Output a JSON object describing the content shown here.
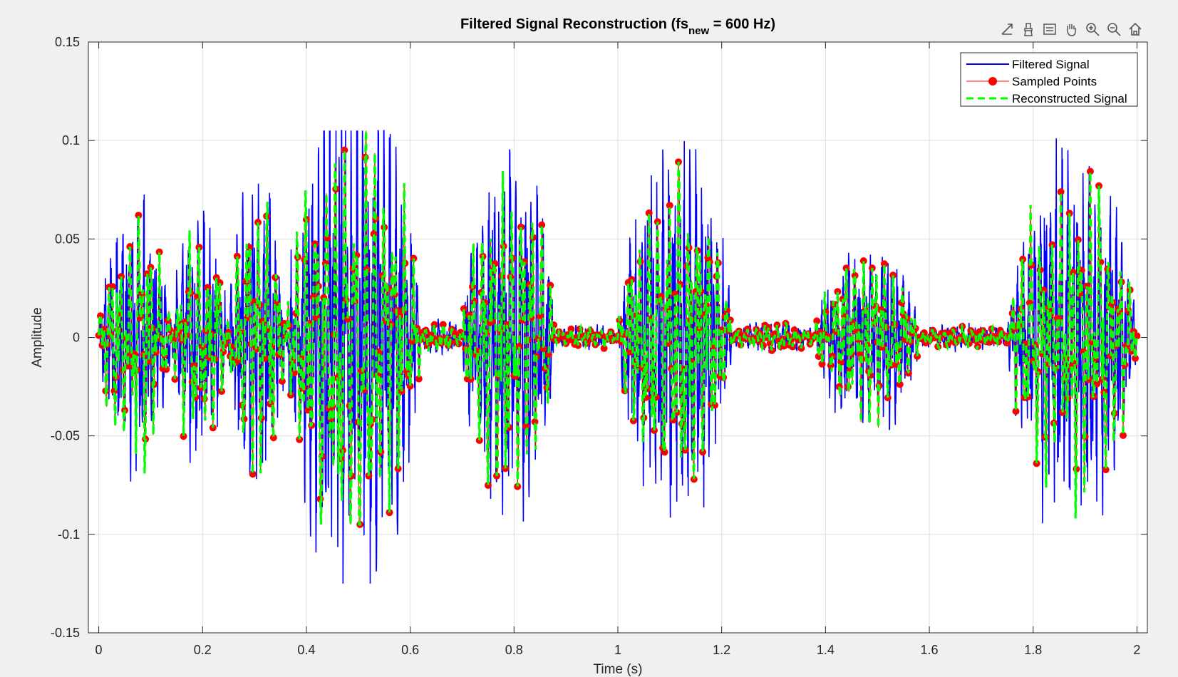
{
  "toolbar": {
    "icons": [
      "export-icon",
      "brush-icon",
      "datatip-icon",
      "pan-hand-icon",
      "zoom-in-icon",
      "zoom-out-icon",
      "home-icon"
    ]
  },
  "colors": {
    "filtered": "#0000ff",
    "sampled": "#ff0000",
    "reconstructed": "#00ff00",
    "grid": "#dedede",
    "figure_bg": "#f0f0f0",
    "axes_bg": "#ffffff"
  },
  "chart_data": {
    "type": "line",
    "title_main": "Filtered Signal Reconstruction (fs",
    "title_sub": "new",
    "title_tail": " = 600 Hz)",
    "xlabel": "Time (s)",
    "ylabel": "Amplitude",
    "xlim": [
      -0.02,
      2.02
    ],
    "ylim": [
      -0.15,
      0.15
    ],
    "xticks": [
      0,
      0.2,
      0.4,
      0.6,
      0.8,
      1,
      1.2,
      1.4,
      1.6,
      1.8,
      2
    ],
    "xtick_labels": [
      "0",
      "0.2",
      "0.4",
      "0.6",
      "0.8",
      "1",
      "1.2",
      "1.4",
      "1.6",
      "1.8",
      "2"
    ],
    "yticks": [
      -0.15,
      -0.1,
      -0.05,
      0,
      0.05,
      0.1,
      0.15
    ],
    "ytick_labels": [
      "-0.15",
      "-0.1",
      "-0.05",
      "0",
      "0.05",
      "0.1",
      "0.15"
    ],
    "grid": true,
    "legend_position": "top-right",
    "series": [
      {
        "name": "Filtered Signal",
        "style": "solid-line"
      },
      {
        "name": "Sampled Points",
        "style": "line-with-markers"
      },
      {
        "name": "Reconstructed Signal",
        "style": "dashed-line"
      }
    ],
    "envelope_segments": [
      {
        "t0": 0.0,
        "t1": 0.14,
        "amp": 0.05
      },
      {
        "t0": 0.14,
        "t1": 0.25,
        "amp": 0.045
      },
      {
        "t0": 0.25,
        "t1": 0.36,
        "amp": 0.06
      },
      {
        "t0": 0.36,
        "t1": 0.62,
        "amp": 0.1
      },
      {
        "t0": 0.62,
        "t1": 0.7,
        "amp": 0.005
      },
      {
        "t0": 0.7,
        "t1": 0.88,
        "amp": 0.07
      },
      {
        "t0": 0.88,
        "t1": 1.0,
        "amp": 0.003
      },
      {
        "t0": 1.0,
        "t1": 1.22,
        "amp": 0.07
      },
      {
        "t0": 1.22,
        "t1": 1.38,
        "amp": 0.004
      },
      {
        "t0": 1.38,
        "t1": 1.58,
        "amp": 0.035
      },
      {
        "t0": 1.58,
        "t1": 1.75,
        "amp": 0.003
      },
      {
        "t0": 1.75,
        "t1": 2.0,
        "amp": 0.07
      }
    ],
    "sample_rate_hz": 600
  }
}
